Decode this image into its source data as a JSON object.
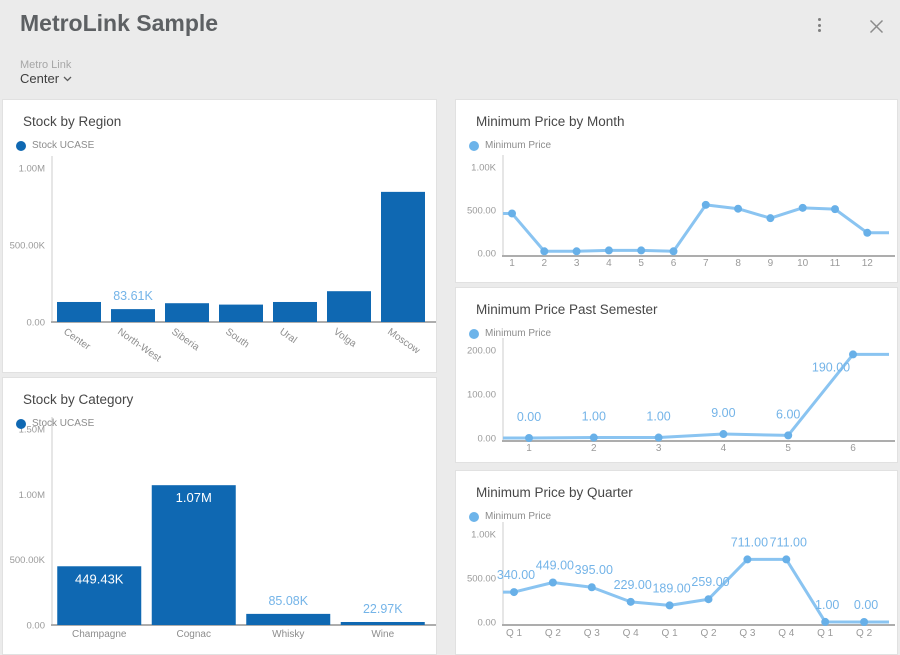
{
  "header": {
    "title": "MetroLink Sample",
    "filter_label": "Metro Link",
    "filter_value": "Center"
  },
  "icons": {
    "more_options": "kebab-menu-icon",
    "close": "close-icon",
    "dropdown": "chevron-down-icon"
  },
  "colors": {
    "bar": "#0f68b2",
    "line": "#8ac4f1",
    "point": "#68b0e8",
    "value_label": "#74b4e8",
    "accent_dark_blue": "#0f68b2",
    "accent_light_blue": "#6db4ea",
    "panel_background": "#ffffff",
    "page_background": "#ebebeb"
  },
  "chart_data": [
    {
      "id": "region",
      "type": "bar",
      "title": "Stock by Region",
      "legend": "Stock UCASE",
      "legend_position": "top-left",
      "grid": false,
      "categories": [
        "Center",
        "North-West",
        "Siberia",
        "South",
        "Ural",
        "Volga",
        "Moscow"
      ],
      "values": [
        130000,
        83610,
        122000,
        113000,
        130000,
        200000,
        845000
      ],
      "point_labels": [
        null,
        {
          "text": "83.61K",
          "placement": "above"
        },
        null,
        null,
        null,
        null,
        null
      ],
      "ylim": [
        0,
        1000000
      ],
      "yticks": [
        {
          "label": "1.00M",
          "v": 1000000
        },
        {
          "label": "500.00K",
          "v": 500000
        },
        {
          "label": "0.00",
          "v": 0
        }
      ]
    },
    {
      "id": "category",
      "type": "bar",
      "title": "Stock by Category",
      "legend": "Stock UCASE",
      "legend_position": "top-left",
      "grid": false,
      "categories": [
        "Champagne",
        "Cognac",
        "Whisky",
        "Wine"
      ],
      "values": [
        449430,
        1070000,
        85080,
        22970
      ],
      "point_labels": [
        {
          "text": "449.43K",
          "placement": "inside"
        },
        {
          "text": "1.07M",
          "placement": "inside"
        },
        {
          "text": "85.08K",
          "placement": "above"
        },
        {
          "text": "22.97K",
          "placement": "above"
        }
      ],
      "ylim": [
        0,
        1500000
      ],
      "yticks": [
        {
          "label": "1.50M",
          "v": 1500000
        },
        {
          "label": "1.00M",
          "v": 1000000
        },
        {
          "label": "500.00K",
          "v": 500000
        },
        {
          "label": "0.00",
          "v": 0
        }
      ]
    },
    {
      "id": "month",
      "type": "line",
      "title": "Minimum Price by Month",
      "legend": "Minimum Price",
      "legend_position": "top-left",
      "grid": false,
      "categories": [
        "1",
        "2",
        "3",
        "4",
        "5",
        "6",
        "7",
        "8",
        "9",
        "10",
        "11",
        "12"
      ],
      "values": [
        460,
        20,
        20,
        30,
        30,
        20,
        560,
        515,
        405,
        525,
        510,
        235
      ],
      "point_labels": null,
      "ylim": [
        0,
        1000
      ],
      "yticks": [
        {
          "label": "1.00K",
          "v": 1000
        },
        {
          "label": "500.00",
          "v": 500
        },
        {
          "label": "0.00",
          "v": 0
        }
      ]
    },
    {
      "id": "semester",
      "type": "line",
      "title": "Minimum Price Past Semester",
      "legend": "Minimum Price",
      "legend_position": "top-left",
      "grid": false,
      "categories": [
        "1",
        "2",
        "3",
        "4",
        "5",
        "6"
      ],
      "values": [
        0,
        1,
        1,
        9,
        6,
        190
      ],
      "point_labels": [
        "0.00",
        "1.00",
        "1.00",
        "9.00",
        "6.00",
        "190.00"
      ],
      "ylim": [
        0,
        200
      ],
      "yticks": [
        {
          "label": "200.00",
          "v": 200
        },
        {
          "label": "100.00",
          "v": 100
        },
        {
          "label": "0.00",
          "v": 0
        }
      ]
    },
    {
      "id": "quarter",
      "type": "line",
      "title": "Minimum Price by Quarter",
      "legend": "Minimum Price",
      "legend_position": "top-left",
      "grid": false,
      "categories": [
        "Q 1",
        "Q 2",
        "Q 3",
        "Q 4",
        "Q 1",
        "Q 2",
        "Q 3",
        "Q 4",
        "Q 1",
        "Q 2"
      ],
      "values": [
        340,
        449,
        395,
        229,
        189,
        259,
        711,
        711,
        1,
        0
      ],
      "point_labels": [
        "340.00",
        "449.00",
        "395.00",
        "229.00",
        "189.00",
        "259.00",
        "711.00",
        "711.00",
        "1.00",
        "0.00"
      ],
      "ylim": [
        0,
        1000
      ],
      "yticks": [
        {
          "label": "1.00K",
          "v": 1000
        },
        {
          "label": "500.00",
          "v": 500
        },
        {
          "label": "0.00",
          "v": 0
        }
      ]
    }
  ]
}
